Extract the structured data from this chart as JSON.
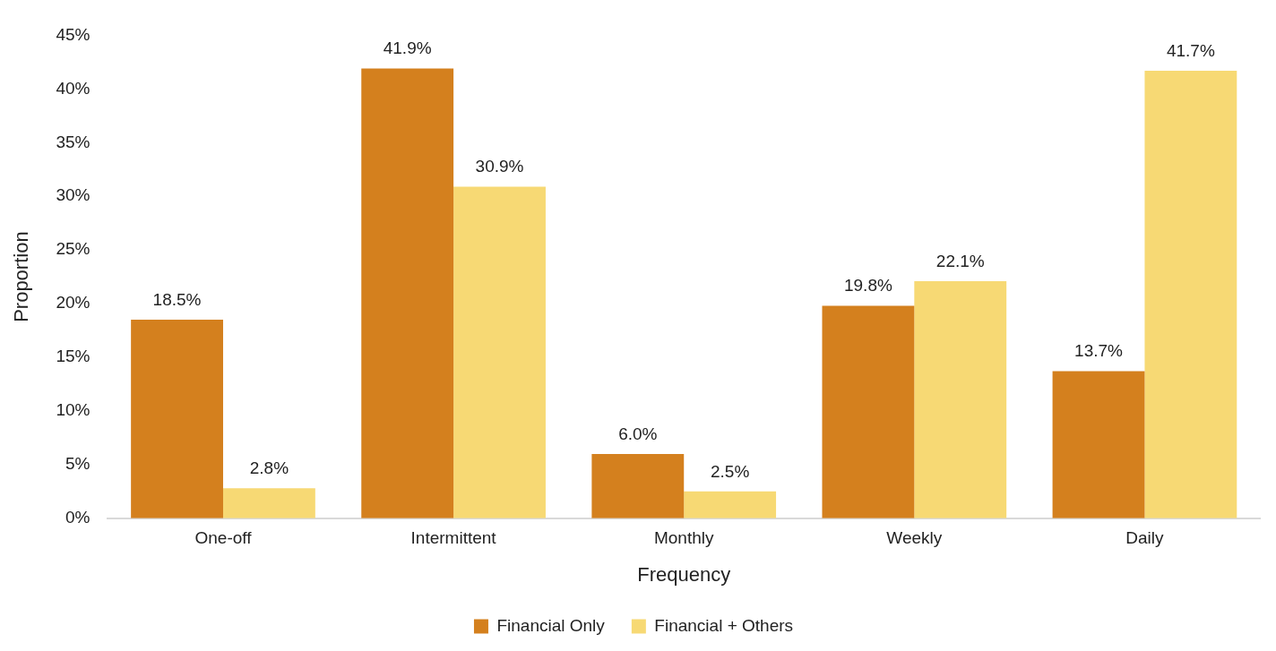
{
  "chart_data": {
    "type": "bar",
    "xlabel": "Frequency",
    "ylabel": "Proportion",
    "categories": [
      "One-off",
      "Intermittent",
      "Monthly",
      "Weekly",
      "Daily"
    ],
    "series": [
      {
        "name": "Financial Only",
        "color": "#d4801e",
        "values": [
          18.5,
          41.9,
          6.0,
          19.8,
          13.7
        ],
        "value_labels": [
          "18.5%",
          "41.9%",
          "6.0%",
          "19.8%",
          "13.7%"
        ]
      },
      {
        "name": "Financial + Others",
        "color": "#f7d974",
        "values": [
          2.8,
          30.9,
          2.5,
          22.1,
          41.7
        ],
        "value_labels": [
          "2.8%",
          "30.9%",
          "2.5%",
          "22.1%",
          "41.7%"
        ]
      }
    ],
    "ylim": [
      0,
      45
    ],
    "yticks": [
      {
        "value": 0,
        "label": "0%"
      },
      {
        "value": 5,
        "label": "5%"
      },
      {
        "value": 10,
        "label": "10%"
      },
      {
        "value": 15,
        "label": "15%"
      },
      {
        "value": 20,
        "label": "20%"
      },
      {
        "value": 25,
        "label": "25%"
      },
      {
        "value": 30,
        "label": "30%"
      },
      {
        "value": 35,
        "label": "35%"
      },
      {
        "value": 40,
        "label": "40%"
      },
      {
        "value": 45,
        "label": "45%"
      }
    ],
    "grid": false,
    "legend": "bottom"
  }
}
